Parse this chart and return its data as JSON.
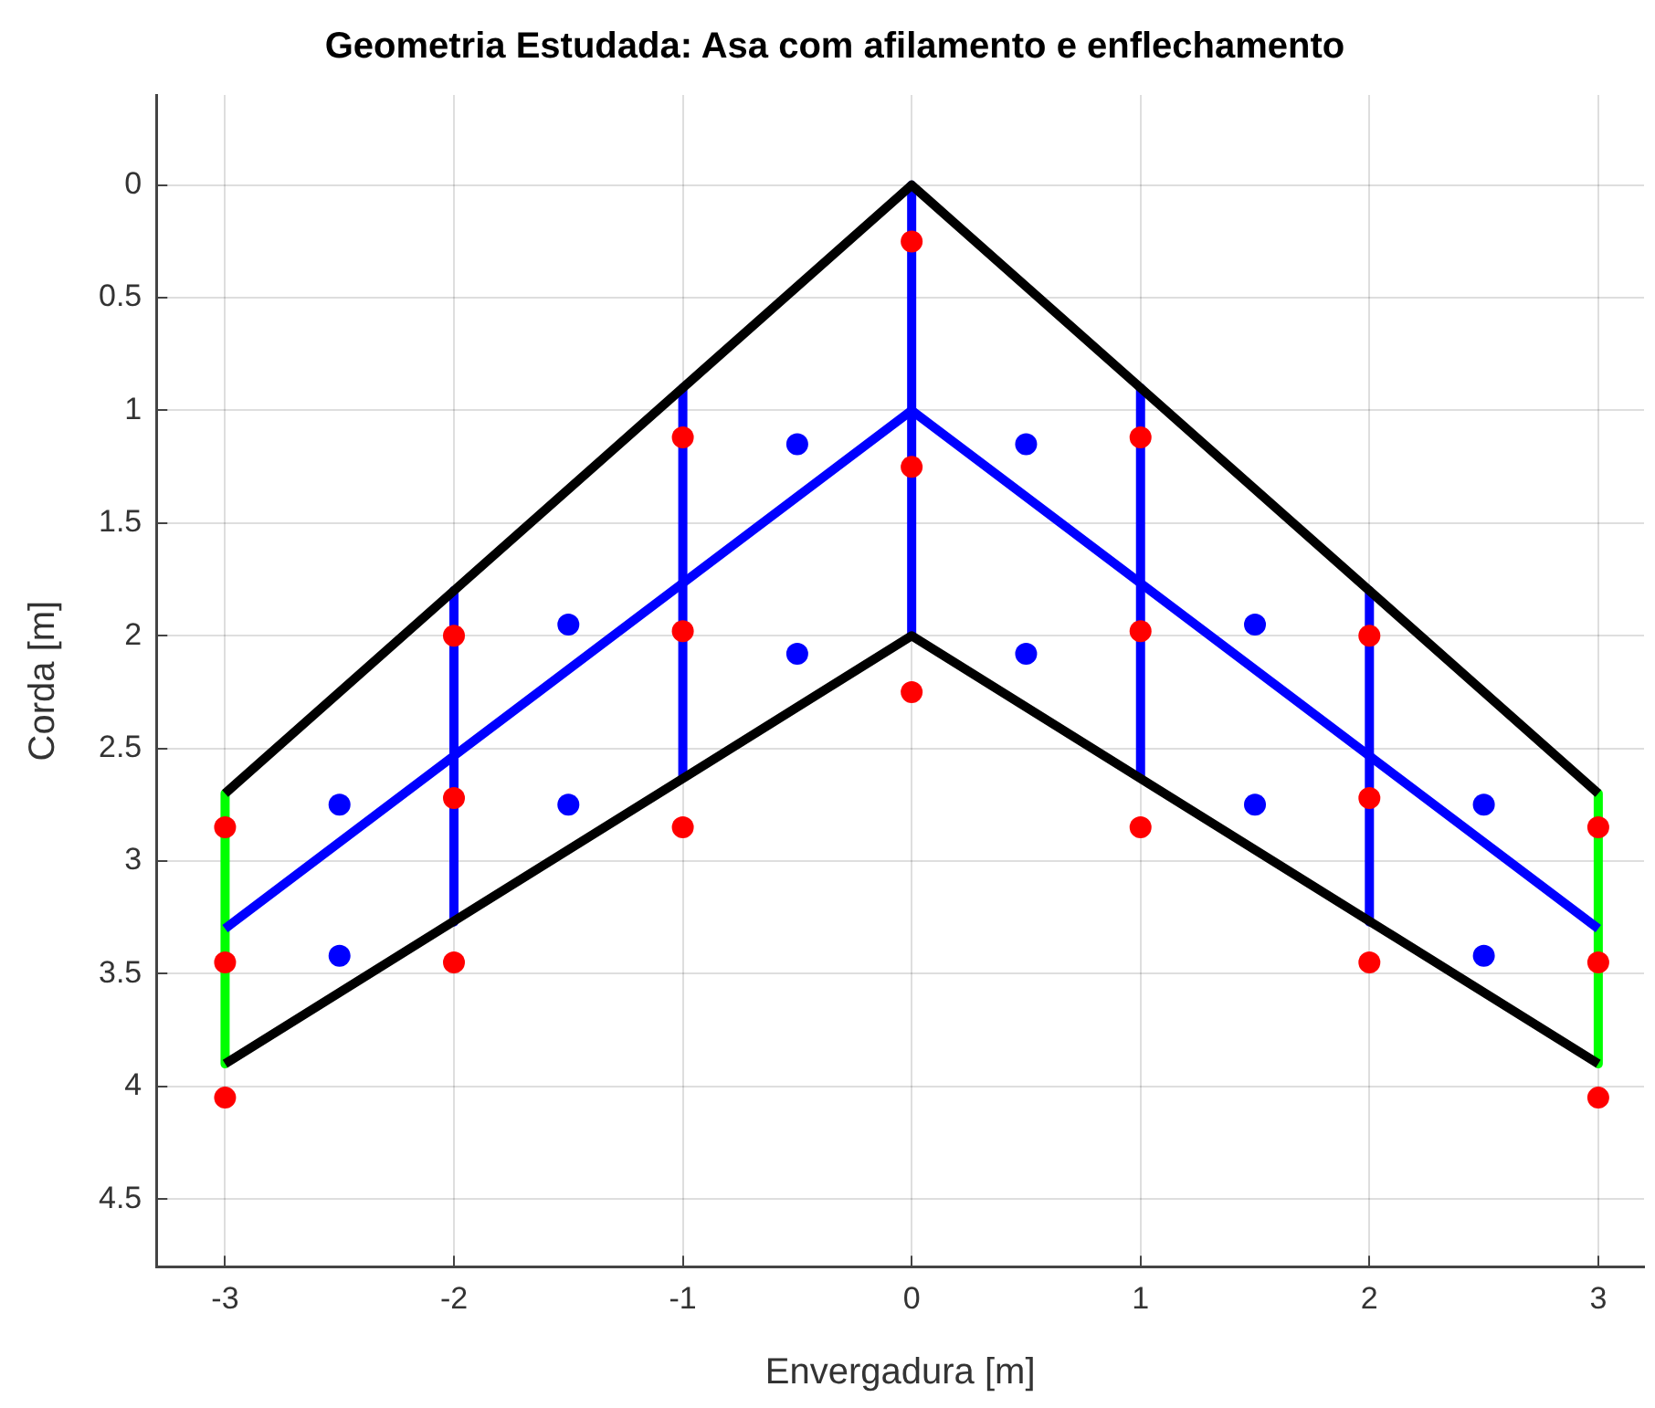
{
  "chart_data": {
    "type": "line",
    "title": "Geometria Estudada: Asa com afilamento e enflechamento",
    "xlabel": "Envergadura [m]",
    "ylabel": "Corda [m]",
    "xlim": [
      -3.3,
      3.2
    ],
    "ylim": [
      4.8,
      -0.4
    ],
    "xticks": [
      -3,
      -2,
      -1,
      0,
      1,
      2,
      3
    ],
    "yticks": [
      0,
      0.5,
      1,
      1.5,
      2,
      2.5,
      3,
      3.5,
      4,
      4.5
    ],
    "grid": true,
    "legend": false,
    "series": [
      {
        "color": "#000000",
        "x": [
          -3,
          0,
          3
        ],
        "values": [
          2.7,
          0,
          2.7
        ]
      },
      {
        "color": "#000000",
        "x": [
          -3,
          0,
          3
        ],
        "values": [
          3.9,
          2,
          3.9
        ]
      },
      {
        "color": "#0000ff",
        "x": [
          -3,
          0,
          3
        ],
        "values": [
          3.3,
          1,
          3.3
        ]
      },
      {
        "color": "#0000ff",
        "x": [
          -2,
          -2
        ],
        "values": [
          1.8,
          3.27
        ]
      },
      {
        "color": "#0000ff",
        "x": [
          -1,
          -1
        ],
        "values": [
          0.9,
          2.63
        ]
      },
      {
        "color": "#0000ff",
        "x": [
          0,
          0
        ],
        "values": [
          0,
          2
        ]
      },
      {
        "color": "#0000ff",
        "x": [
          1,
          1
        ],
        "values": [
          0.9,
          2.63
        ]
      },
      {
        "color": "#0000ff",
        "x": [
          2,
          2
        ],
        "values": [
          1.8,
          3.27
        ]
      },
      {
        "color": "#00ff00",
        "x": [
          -3,
          -3
        ],
        "values": [
          2.7,
          3.9
        ]
      },
      {
        "color": "#00ff00",
        "x": [
          3,
          3
        ],
        "values": [
          2.7,
          3.9
        ]
      },
      {
        "type": "scatter",
        "marker": "circle",
        "color": "#ff0000",
        "x": [
          0,
          0,
          0,
          -1,
          -1,
          -1,
          1,
          1,
          1,
          -2,
          -2,
          -2,
          2,
          2,
          2,
          -3,
          -3,
          -3,
          3,
          3,
          3
        ],
        "values": [
          0.25,
          1.25,
          2.25,
          1.12,
          1.98,
          2.85,
          1.12,
          1.98,
          2.85,
          2.0,
          2.72,
          3.45,
          2.0,
          2.72,
          3.45,
          2.85,
          3.45,
          4.05,
          2.85,
          3.45,
          4.05
        ]
      },
      {
        "type": "scatter",
        "marker": "circle",
        "color": "#0000ff",
        "x": [
          -0.5,
          -0.5,
          0.5,
          0.5,
          -1.5,
          -1.5,
          1.5,
          1.5,
          -2.5,
          -2.5,
          2.5,
          2.5
        ],
        "values": [
          1.15,
          2.08,
          1.15,
          2.08,
          1.95,
          2.75,
          1.95,
          2.75,
          2.75,
          3.42,
          2.75,
          3.42
        ]
      }
    ]
  }
}
